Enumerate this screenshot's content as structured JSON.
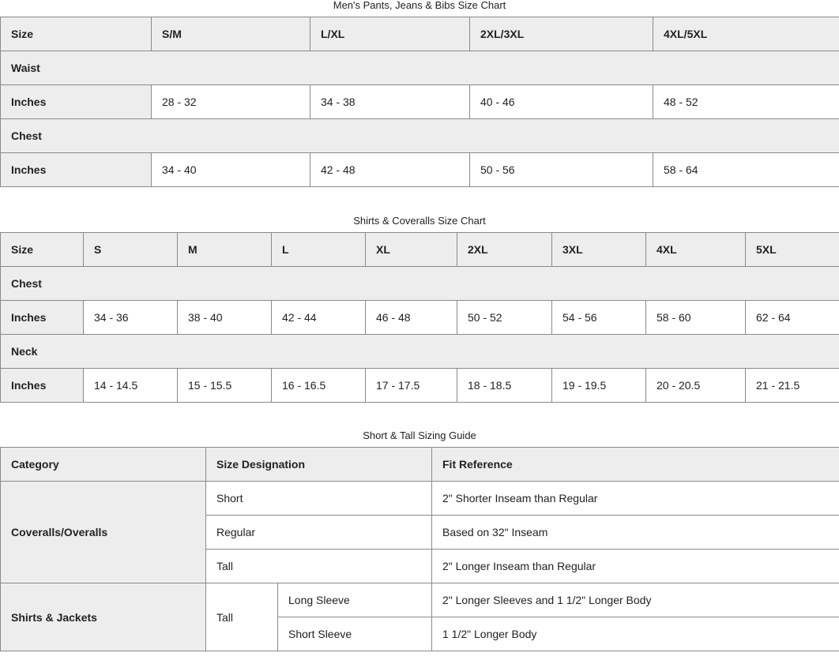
{
  "pants": {
    "title": "Men's Pants, Jeans & Bibs Size Chart",
    "header": [
      "Size",
      "S/M",
      "L/XL",
      "2XL/3XL",
      "4XL/5XL"
    ],
    "sections": [
      {
        "label": "Waist",
        "row_label": "Inches",
        "values": [
          "28 - 32",
          "34 - 38",
          "40 - 46",
          "48 - 52"
        ]
      },
      {
        "label": "Chest",
        "row_label": "Inches",
        "values": [
          "34 - 40",
          "42 - 48",
          "50 - 56",
          "58 - 64"
        ]
      }
    ]
  },
  "shirts": {
    "title": "Shirts & Coveralls Size Chart",
    "header": [
      "Size",
      "S",
      "M",
      "L",
      "XL",
      "2XL",
      "3XL",
      "4XL",
      "5XL"
    ],
    "sections": [
      {
        "label": "Chest",
        "row_label": "Inches",
        "values": [
          "34 - 36",
          "38 - 40",
          "42 - 44",
          "46 - 48",
          "50 - 52",
          "54 - 56",
          "58 - 60",
          "62 - 64"
        ]
      },
      {
        "label": "Neck",
        "row_label": "Inches",
        "values": [
          "14 - 14.5",
          "15 - 15.5",
          "16 - 16.5",
          "17 - 17.5",
          "18 - 18.5",
          "19 - 19.5",
          "20 - 20.5",
          "21 - 21.5"
        ]
      }
    ]
  },
  "shorttall": {
    "title": "Short & Tall Sizing Guide",
    "header": [
      "Category",
      "Size Designation",
      "Fit Reference"
    ],
    "coveralls": {
      "category": "Coveralls/Overalls",
      "rows": [
        {
          "size": "Short",
          "fit": "2\" Shorter Inseam than Regular"
        },
        {
          "size": "Regular",
          "fit": "Based on 32\" Inseam"
        },
        {
          "size": "Tall",
          "fit": "2\" Longer Inseam than Regular"
        }
      ]
    },
    "shirts": {
      "category": "Shirts & Jackets",
      "size": "Tall",
      "rows": [
        {
          "sleeve": "Long Sleeve",
          "fit": "2\" Longer Sleeves and 1 1/2\" Longer Body"
        },
        {
          "sleeve": "Short Sleeve",
          "fit": "1 1/2\" Longer Body"
        }
      ]
    }
  },
  "colors": {
    "header_bg": "#ededed",
    "border": "#8a8a8a"
  }
}
